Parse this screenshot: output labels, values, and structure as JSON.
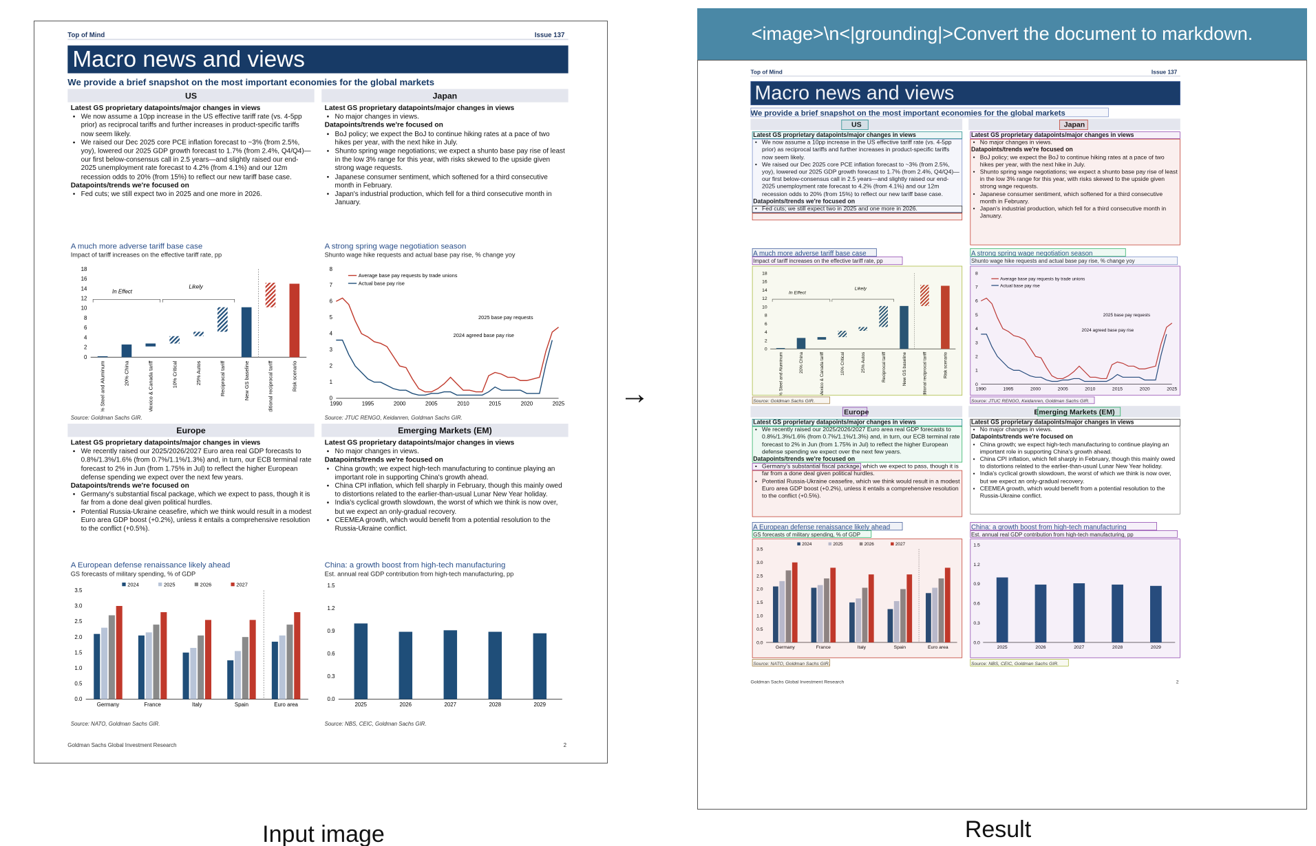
{
  "captions": {
    "input": "Input image",
    "result": "Result"
  },
  "prompt": "<image>\\n<|grounding|>Convert the document to markdown.",
  "doc": {
    "header_left": "Top of Mind",
    "header_right": "Issue 137",
    "title": "Macro news and views",
    "subtitle": "We provide a brief snapshot on the most important economies for the global markets",
    "us": {
      "head": "US",
      "h1": "Latest GS proprietary datapoints/major changes in views",
      "b1": [
        "We now assume a 10pp increase in the US effective tariff rate (vs. 4-5pp prior) as reciprocal tariffs and further increases in product-specific tariffs now seem likely.",
        "We raised our Dec 2025 core PCE inflation forecast to ~3% (from 2.5%, yoy), lowered our 2025 GDP growth forecast to 1.7% (from 2.4%, Q4/Q4)—our first below-consensus call in 2.5 years—and slightly raised our end-2025 unemployment rate forecast to 4.2% (from 4.1%) and our 12m recession odds to 20% (from 15%) to reflect our new tariff base case."
      ],
      "h2": "Datapoints/trends we're focused on",
      "b2": [
        "Fed cuts; we still expect two in 2025 and one more in 2026."
      ],
      "chart_title": "A much more adverse tariff base case",
      "chart_sub": "Impact of tariff increases on the effective tariff rate, pp",
      "source": "Source: Goldman Sachs GIR."
    },
    "japan": {
      "head": "Japan",
      "h1": "Latest GS proprietary datapoints/major changes in views",
      "b1": [
        "No major changes in views."
      ],
      "h2": "Datapoints/trends we're focused on",
      "b2": [
        "BoJ policy; we expect the BoJ to continue hiking rates at a pace of two hikes per year, with the next hike in July.",
        "Shunto spring wage negotiations; we expect a shunto base pay rise of least in the low 3% range for this year, with risks skewed to the upside given strong wage requests.",
        "Japanese consumer sentiment, which softened for a third consecutive month in February.",
        "Japan's industrial production, which fell for a third consecutive month in January."
      ],
      "chart_title": "A strong spring wage negotiation season",
      "chart_sub": "Shunto wage hike requests and actual base pay rise, % change yoy",
      "source": "Source: JTUC RENGO, Keidanren, Goldman Sachs GIR."
    },
    "europe": {
      "head": "Europe",
      "h1": "Latest GS proprietary datapoints/major changes in views",
      "b1": [
        "We recently raised our 2025/2026/2027 Euro area real GDP forecasts to 0.8%/1.3%/1.6% (from 0.7%/1.1%/1.3%) and, in turn, our ECB terminal rate forecast to 2% in Jun (from 1.75% in Jul) to reflect the higher European defense spending we expect over the next few years."
      ],
      "h2": "Datapoints/trends we're focused on",
      "b2": [
        "Germany's substantial fiscal package, which we expect to pass, though it is far from a done deal given political hurdles.",
        "Potential Russia-Ukraine ceasefire, which we think would result in a modest Euro area GDP boost (+0.2%), unless it entails a comprehensive resolution to the conflict (+0.5%)."
      ],
      "chart_title": "A European defense renaissance likely ahead",
      "chart_sub": "GS forecasts of military spending, % of GDP",
      "source": "Source: NATO, Goldman Sachs GIR."
    },
    "em": {
      "head": "Emerging Markets (EM)",
      "h1": "Latest GS proprietary datapoints/major changes in views",
      "b1": [
        "No major changes in views."
      ],
      "h2": "Datapoints/trends we're focused on",
      "b2": [
        "China growth; we expect high-tech manufacturing to continue playing an important role in supporting China's growth ahead.",
        "China CPI inflation, which fell sharply in February, though this mainly owed to distortions related to the earlier-than-usual Lunar New Year holiday.",
        "India's cyclical growth slowdown, the worst of which we think is now over, but we expect an only-gradual recovery.",
        "CEEMEA growth, which would benefit from a potential resolution to the Russia-Ukraine conflict."
      ],
      "chart_title": "China: a growth boost from high-tech manufacturing",
      "chart_sub": "Est. annual real GDP contribution from high-tech manufacturing, pp",
      "source": "Source: NBS, CEIC, Goldman Sachs GIR."
    },
    "footer_left": "Goldman Sachs Global Investment Research",
    "footer_right": "2"
  },
  "chart_data": [
    {
      "type": "bar",
      "title": "A much more adverse tariff base case",
      "ylim": [
        0,
        18
      ],
      "yticks": [
        0,
        2,
        4,
        6,
        8,
        10,
        12,
        14,
        16,
        18
      ],
      "categories": [
        "25% Steel and Aluminum",
        "20% China",
        "Limited Mexico & Canada tariff",
        "10% Critical",
        "25% Autos",
        "Reciprocal tariff",
        "New GS baseline",
        "Additional reciprocal tariff",
        "Risk scenario"
      ],
      "bases": [
        0,
        0,
        2.2,
        2.8,
        4.3,
        5.2,
        0,
        10.2,
        0
      ],
      "values": [
        0.2,
        2.6,
        0.6,
        1.5,
        0.9,
        5.0,
        10.2,
        5.0,
        15.0
      ],
      "annotations": [
        "In Effect",
        "Likely"
      ]
    },
    {
      "type": "line",
      "title": "A strong spring wage negotiation season",
      "ylim": [
        0,
        8
      ],
      "xlim": [
        1990,
        2025
      ],
      "xticks": [
        1990,
        1995,
        2000,
        2005,
        2010,
        2015,
        2020,
        2025
      ],
      "series": [
        {
          "name": "Average base pay requests by trade unions",
          "color": "#c0392b",
          "points": [
            [
              1990,
              6.0
            ],
            [
              1991,
              6.2
            ],
            [
              1992,
              5.8
            ],
            [
              1993,
              4.8
            ],
            [
              1994,
              4.0
            ],
            [
              1995,
              3.8
            ],
            [
              1996,
              3.5
            ],
            [
              1997,
              3.4
            ],
            [
              1998,
              3.2
            ],
            [
              1999,
              2.6
            ],
            [
              2000,
              2.0
            ],
            [
              2001,
              1.9
            ],
            [
              2002,
              1.2
            ],
            [
              2003,
              0.6
            ],
            [
              2004,
              0.4
            ],
            [
              2005,
              0.4
            ],
            [
              2006,
              0.6
            ],
            [
              2007,
              0.9
            ],
            [
              2008,
              1.3
            ],
            [
              2009,
              0.9
            ],
            [
              2010,
              0.5
            ],
            [
              2011,
              0.5
            ],
            [
              2012,
              0.4
            ],
            [
              2013,
              0.4
            ],
            [
              2014,
              1.4
            ],
            [
              2015,
              1.6
            ],
            [
              2016,
              1.5
            ],
            [
              2017,
              1.3
            ],
            [
              2018,
              1.3
            ],
            [
              2019,
              1.1
            ],
            [
              2020,
              1.1
            ],
            [
              2021,
              1.2
            ],
            [
              2022,
              1.3
            ],
            [
              2023,
              2.9
            ],
            [
              2024,
              4.1
            ],
            [
              2025,
              4.4
            ]
          ]
        },
        {
          "name": "Actual base pay rise",
          "color": "#1f4e79",
          "points": [
            [
              1990,
              3.6
            ],
            [
              1991,
              3.6
            ],
            [
              1992,
              2.7
            ],
            [
              1993,
              2.0
            ],
            [
              1994,
              1.6
            ],
            [
              1995,
              1.2
            ],
            [
              1996,
              1.0
            ],
            [
              1997,
              1.0
            ],
            [
              1998,
              0.8
            ],
            [
              1999,
              0.6
            ],
            [
              2000,
              0.5
            ],
            [
              2001,
              0.5
            ],
            [
              2002,
              0.3
            ],
            [
              2003,
              0.2
            ],
            [
              2004,
              0.2
            ],
            [
              2005,
              0.3
            ],
            [
              2006,
              0.3
            ],
            [
              2007,
              0.4
            ],
            [
              2008,
              0.4
            ],
            [
              2009,
              0.2
            ],
            [
              2010,
              0.2
            ],
            [
              2011,
              0.2
            ],
            [
              2012,
              0.2
            ],
            [
              2013,
              0.2
            ],
            [
              2014,
              0.4
            ],
            [
              2015,
              0.7
            ],
            [
              2016,
              0.5
            ],
            [
              2017,
              0.5
            ],
            [
              2018,
              0.5
            ],
            [
              2019,
              0.5
            ],
            [
              2020,
              0.3
            ],
            [
              2021,
              0.3
            ],
            [
              2022,
              0.3
            ],
            [
              2023,
              2.1
            ],
            [
              2024,
              3.6
            ]
          ]
        }
      ],
      "annotations": [
        "2025 base pay requests",
        "2024 agreed base pay rise"
      ]
    },
    {
      "type": "bar",
      "title": "A European defense renaissance likely ahead",
      "ylim": [
        0,
        3.5
      ],
      "yticks": [
        "0.0",
        "0.5",
        "1.0",
        "1.5",
        "2.0",
        "2.5",
        "3.0",
        "3.5"
      ],
      "categories": [
        "Germany",
        "France",
        "Italy",
        "Spain",
        "Euro area"
      ],
      "series": [
        {
          "name": "2024",
          "color": "#1f4e79",
          "values": [
            2.1,
            2.05,
            1.5,
            1.25,
            1.85
          ]
        },
        {
          "name": "2025",
          "color": "#b8c4d8",
          "values": [
            2.3,
            2.15,
            1.65,
            1.55,
            2.05
          ]
        },
        {
          "name": "2026",
          "color": "#8a8a8a",
          "values": [
            2.7,
            2.4,
            2.05,
            2.0,
            2.4
          ]
        },
        {
          "name": "2027",
          "color": "#c0392b",
          "values": [
            3.0,
            2.8,
            2.55,
            2.55,
            2.8
          ]
        }
      ]
    },
    {
      "type": "bar",
      "title": "China: a growth boost from high-tech manufacturing",
      "ylim": [
        0,
        1.5
      ],
      "yticks": [
        "0.0",
        "0.3",
        "0.6",
        "0.9",
        "1.2",
        "1.5"
      ],
      "categories": [
        "2025",
        "2026",
        "2027",
        "2028",
        "2029"
      ],
      "values": [
        1.0,
        0.89,
        0.91,
        0.89,
        0.87
      ]
    }
  ]
}
